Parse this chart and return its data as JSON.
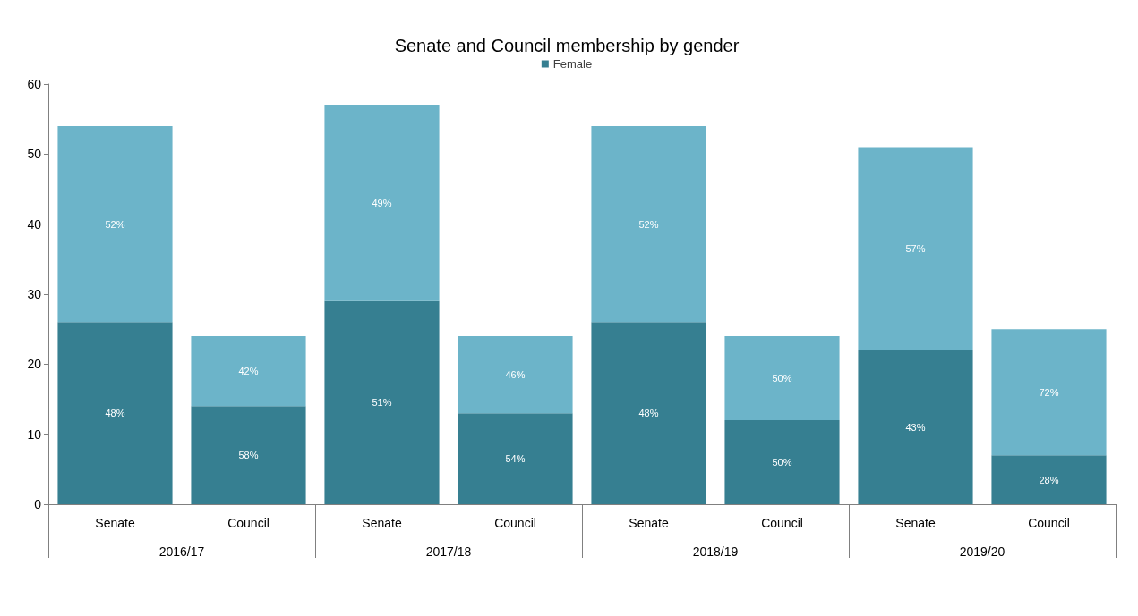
{
  "chart_data": {
    "type": "bar",
    "title": "Senate and Council membership by gender",
    "stacked": true,
    "categories": [
      "Senate",
      "Council",
      "Senate",
      "Council",
      "Senate",
      "Council",
      "Senate",
      "Council"
    ],
    "annotations": [
      "2016/17",
      "2017/18",
      "2018/19",
      "2019/20",
      "48%",
      "52%",
      "58%",
      "42%",
      "51%",
      "49%",
      "54%",
      "46%",
      "48%",
      "52%",
      "50%",
      "50%",
      "43%",
      "57%",
      "28%",
      "72%"
    ],
    "series": [
      {
        "name": "Female",
        "color": "#367f91",
        "values": [
          26,
          14,
          29,
          13,
          26,
          12,
          22,
          7
        ]
      },
      {
        "color": "#6cb4c9",
        "values": [
          28,
          10,
          28,
          11,
          28,
          12,
          29,
          18
        ]
      }
    ],
    "ylim": [
      0,
      60
    ],
    "yticks": [
      0,
      10,
      20,
      30,
      40,
      50,
      60
    ],
    "grid": false,
    "legend": "top"
  }
}
